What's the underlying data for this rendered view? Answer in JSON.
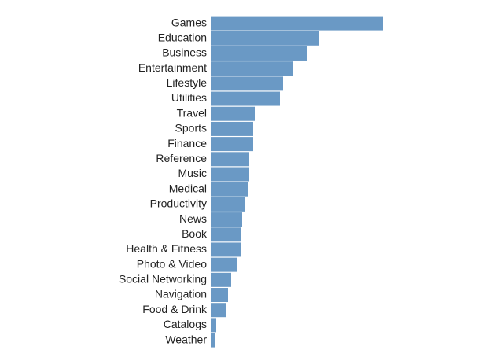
{
  "chart_data": {
    "type": "bar",
    "orientation": "horizontal",
    "color": "#6a99c5",
    "categories": [
      "Games",
      "Education",
      "Business",
      "Entertainment",
      "Lifestyle",
      "Utilities",
      "Travel",
      "Sports",
      "Finance",
      "Reference",
      "Music",
      "Medical",
      "Productivity",
      "News",
      "Book",
      "Health & Fitness",
      "Photo & Video",
      "Social Networking",
      "Navigation",
      "Food & Drink",
      "Catalogs",
      "Weather"
    ],
    "values": [
      219,
      138,
      123,
      105,
      92,
      88,
      56,
      54,
      54,
      49,
      49,
      47,
      43,
      40,
      39,
      39,
      33,
      26,
      22,
      20,
      7,
      5
    ]
  }
}
